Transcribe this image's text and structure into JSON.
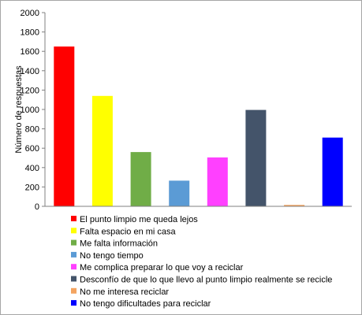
{
  "chart_data": {
    "type": "bar",
    "title": "",
    "xlabel": "",
    "ylabel": "Número de respuestas",
    "ylim": [
      0,
      2000
    ],
    "yticks": [
      0,
      200,
      400,
      600,
      800,
      1000,
      1200,
      1400,
      1600,
      1800,
      2000
    ],
    "grid": false,
    "legend_position": "bottom",
    "categories": [
      "El punto limpio me queda lejos",
      "Falta espacio en mi casa",
      "Me falta información",
      "No tengo tiempo",
      "Me complica preparar lo que voy a reciclar",
      "Desconfío de que lo que llevo al punto limpio realmente se recicle",
      "No me interesa reciclar",
      "No tengo dificultades para reciclar"
    ],
    "values": [
      1650,
      1140,
      560,
      265,
      505,
      995,
      15,
      710
    ],
    "colors": [
      "#ff0000",
      "#ffff00",
      "#70ad47",
      "#5b9bd5",
      "#ff40ff",
      "#44546a",
      "#f4a460",
      "#0000ff"
    ]
  }
}
